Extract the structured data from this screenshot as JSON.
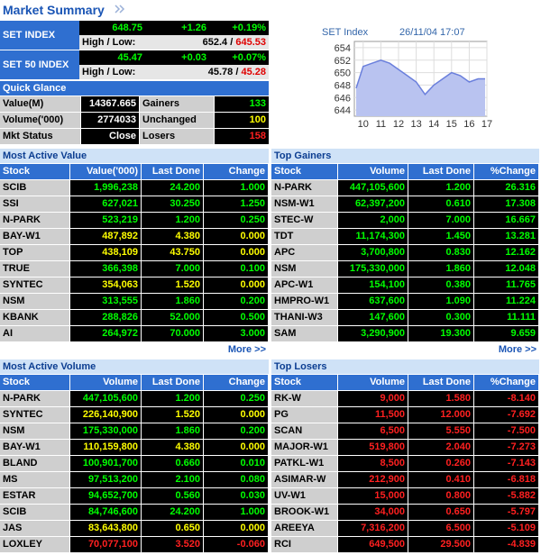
{
  "header": {
    "title": "Market Summary"
  },
  "indices": [
    {
      "name": "SET INDEX",
      "last": "648.75",
      "change": "+1.26",
      "pct": "+0.19%",
      "high_low_label": "High / Low:",
      "high": "652.4",
      "separator": "/",
      "low": "645.53"
    },
    {
      "name": "SET 50 INDEX",
      "last": "45.47",
      "change": "+0.03",
      "pct": "+0.07%",
      "high_low_label": "High / Low:",
      "high": "45.78",
      "separator": "/",
      "low": "45.28"
    }
  ],
  "quick_glance": {
    "title": "Quick Glance",
    "rows": [
      [
        "Value(M)",
        "14367.665",
        "Gainers",
        "133"
      ],
      [
        "Volume('000)",
        "2774033",
        "Unchanged",
        "100"
      ],
      [
        "Mkt Status",
        "Close",
        "Losers",
        "158"
      ]
    ],
    "value_colors": [
      "#00ff00",
      "#ffff00",
      "#ff2020"
    ]
  },
  "chart_data": {
    "type": "area",
    "title": "SET Index",
    "timestamp": "26/11/04 17:07",
    "x": [
      9.6,
      10,
      10.5,
      11,
      11.5,
      12,
      12.5,
      13,
      13.5,
      14,
      14.5,
      15,
      15.5,
      16,
      16.5,
      16.9
    ],
    "values": [
      647.5,
      651,
      651.5,
      652,
      651.5,
      650.5,
      649.5,
      648.5,
      646.5,
      648,
      649,
      650,
      649.5,
      648.5,
      649,
      649
    ],
    "xlim": [
      9.5,
      17
    ],
    "ylim": [
      643,
      655
    ],
    "xticks": [
      10,
      11,
      12,
      13,
      14,
      15,
      16,
      17
    ],
    "yticks": [
      644,
      646,
      648,
      650,
      652,
      654
    ],
    "color": "#6a7fdc",
    "grid": true
  },
  "tables": [
    {
      "title": "Most Active Value",
      "columns": [
        "Stock",
        "Value('000)",
        "Last Done",
        "Change"
      ],
      "rows": [
        [
          "SCIB",
          "1,996,238",
          "24.200",
          "1.000"
        ],
        [
          "SSI",
          "627,021",
          "30.250",
          "1.250"
        ],
        [
          "N-PARK",
          "523,219",
          "1.200",
          "0.250"
        ],
        [
          "BAY-W1",
          "487,892",
          "4.380",
          "0.000"
        ],
        [
          "TOP",
          "438,109",
          "43.750",
          "0.000"
        ],
        [
          "TRUE",
          "366,398",
          "7.000",
          "0.100"
        ],
        [
          "SYNTEC",
          "354,063",
          "1.520",
          "0.000"
        ],
        [
          "NSM",
          "313,555",
          "1.860",
          "0.200"
        ],
        [
          "KBANK",
          "288,826",
          "52.000",
          "0.500"
        ],
        [
          "AI",
          "264,972",
          "70.000",
          "3.000"
        ]
      ],
      "row_colors": [
        "#00ff00",
        "#00ff00",
        "#00ff00",
        "#ffff00",
        "#ffff00",
        "#00ff00",
        "#ffff00",
        "#00ff00",
        "#00ff00",
        "#00ff00"
      ],
      "more": "More >>"
    },
    {
      "title": "Top Gainers",
      "columns": [
        "Stock",
        "Volume",
        "Last Done",
        "%Change"
      ],
      "rows": [
        [
          "N-PARK",
          "447,105,600",
          "1.200",
          "26.316"
        ],
        [
          "NSM-W1",
          "62,397,200",
          "0.610",
          "17.308"
        ],
        [
          "STEC-W",
          "2,000",
          "7.000",
          "16.667"
        ],
        [
          "TDT",
          "11,174,300",
          "1.450",
          "13.281"
        ],
        [
          "APC",
          "3,700,800",
          "0.830",
          "12.162"
        ],
        [
          "NSM",
          "175,330,000",
          "1.860",
          "12.048"
        ],
        [
          "APC-W1",
          "154,100",
          "0.380",
          "11.765"
        ],
        [
          "HMPRO-W1",
          "637,600",
          "1.090",
          "11.224"
        ],
        [
          "THANI-W3",
          "147,600",
          "0.300",
          "11.111"
        ],
        [
          "SAM",
          "3,290,900",
          "19.300",
          "9.659"
        ]
      ],
      "row_colors": [
        "#00ff00",
        "#00ff00",
        "#00ff00",
        "#00ff00",
        "#00ff00",
        "#00ff00",
        "#00ff00",
        "#00ff00",
        "#00ff00",
        "#00ff00"
      ],
      "more": "More >>"
    },
    {
      "title": "Most Active Volume",
      "columns": [
        "Stock",
        "Volume",
        "Last Done",
        "Change"
      ],
      "rows": [
        [
          "N-PARK",
          "447,105,600",
          "1.200",
          "0.250"
        ],
        [
          "SYNTEC",
          "226,140,900",
          "1.520",
          "0.000"
        ],
        [
          "NSM",
          "175,330,000",
          "1.860",
          "0.200"
        ],
        [
          "BAY-W1",
          "110,159,800",
          "4.380",
          "0.000"
        ],
        [
          "BLAND",
          "100,901,700",
          "0.660",
          "0.010"
        ],
        [
          "MS",
          "97,513,200",
          "2.100",
          "0.080"
        ],
        [
          "ESTAR",
          "94,652,700",
          "0.560",
          "0.030"
        ],
        [
          "SCIB",
          "84,746,600",
          "24.200",
          "1.000"
        ],
        [
          "JAS",
          "83,643,800",
          "0.650",
          "0.000"
        ],
        [
          "LOXLEY",
          "70,077,100",
          "3.520",
          "-0.060"
        ]
      ],
      "row_colors": [
        "#00ff00",
        "#ffff00",
        "#00ff00",
        "#ffff00",
        "#00ff00",
        "#00ff00",
        "#00ff00",
        "#00ff00",
        "#ffff00",
        "#ff2020"
      ]
    },
    {
      "title": "Top Losers",
      "columns": [
        "Stock",
        "Volume",
        "Last Done",
        "%Change"
      ],
      "rows": [
        [
          "RK-W",
          "9,000",
          "1.580",
          "-8.140"
        ],
        [
          "PG",
          "11,500",
          "12.000",
          "-7.692"
        ],
        [
          "SCAN",
          "6,500",
          "5.550",
          "-7.500"
        ],
        [
          "MAJOR-W1",
          "519,800",
          "2.040",
          "-7.273"
        ],
        [
          "PATKL-W1",
          "8,500",
          "0.260",
          "-7.143"
        ],
        [
          "ASIMAR-W",
          "212,900",
          "0.410",
          "-6.818"
        ],
        [
          "UV-W1",
          "15,000",
          "0.800",
          "-5.882"
        ],
        [
          "BROOK-W1",
          "34,000",
          "0.650",
          "-5.797"
        ],
        [
          "AREEYA",
          "7,316,200",
          "6.500",
          "-5.109"
        ],
        [
          "RCI",
          "649,500",
          "29.500",
          "-4.839"
        ]
      ],
      "row_colors": [
        "#ff2020",
        "#ff2020",
        "#ff2020",
        "#ff2020",
        "#ff2020",
        "#ff2020",
        "#ff2020",
        "#ff2020",
        "#ff2020",
        "#ff2020"
      ]
    }
  ]
}
